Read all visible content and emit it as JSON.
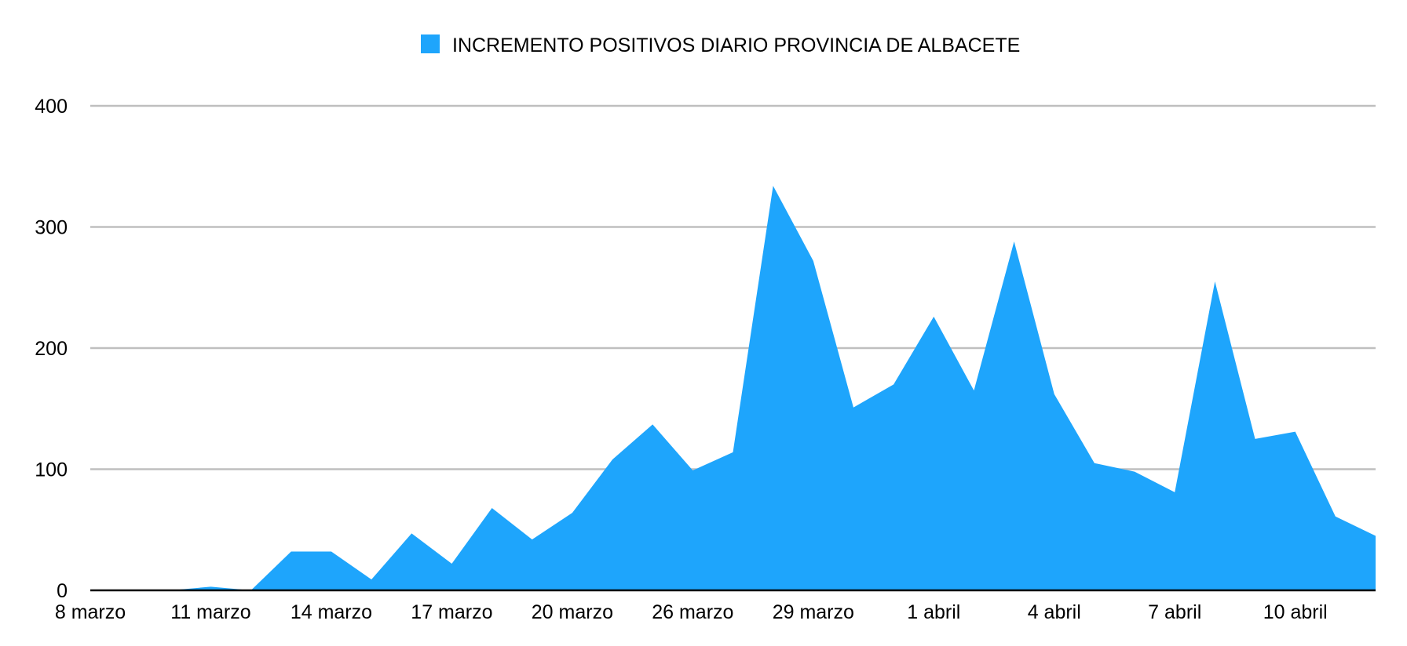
{
  "chart_data": {
    "type": "area",
    "title": "",
    "xlabel": "",
    "ylabel": "",
    "ylim": [
      0,
      400
    ],
    "yticks": [
      "0",
      "100",
      "200",
      "300",
      "400"
    ],
    "grid": "horizontal",
    "legend_position": "top-center",
    "x_tick_labels": [
      "8 marzo",
      "11 marzo",
      "14 marzo",
      "17 marzo",
      "20 marzo",
      "26 marzo",
      "29 marzo",
      "1 abril",
      "4 abril",
      "7 abril",
      "10 abril"
    ],
    "series": [
      {
        "name": "INCREMENTO POSITIVOS DIARIO PROVINCIA DE ALBACETE",
        "color": "#1ea5fc",
        "values": [
          0,
          0,
          0,
          3,
          0,
          32,
          32,
          9,
          47,
          22,
          68,
          42,
          64,
          108,
          137,
          99,
          114,
          334,
          272,
          151,
          170,
          226,
          165,
          288,
          162,
          105,
          98,
          81,
          255,
          125,
          131,
          61,
          45
        ]
      }
    ]
  }
}
